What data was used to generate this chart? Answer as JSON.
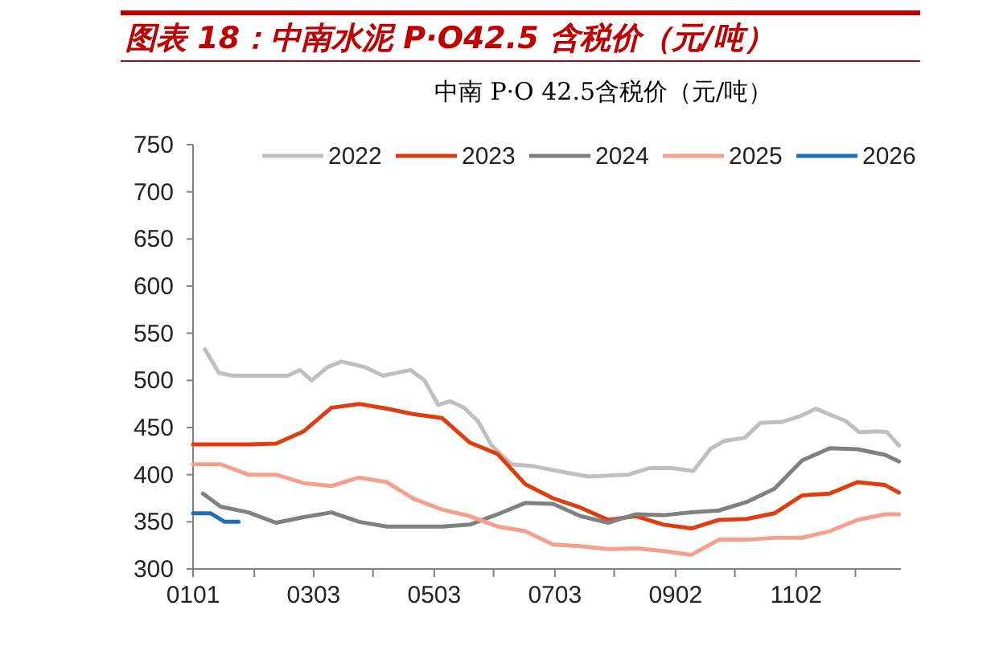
{
  "chart_data": {
    "type": "line",
    "title": "图表 18：中南水泥 P·O42.5 含税价（元/吨）",
    "subtitle": "中南 P·O 42.5含税价（元/吨）",
    "x": [
      "--01-01",
      "--01-15",
      "--01-29",
      "--02-12",
      "--02-26",
      "--03-12",
      "--03-26",
      "--04-09",
      "--04-23",
      "--05-07",
      "--05-21",
      "--06-04",
      "--06-18",
      "--07-02",
      "--07-16",
      "--07-30",
      "--08-13",
      "--08-27",
      "--09-10",
      "--09-24",
      "--10-08",
      "--10-22",
      "--11-05",
      "--11-19",
      "--12-03",
      "--12-17",
      "--12-24"
    ],
    "series": [
      {
        "name": "2022",
        "color": "#bfbfbf",
        "x": [
          "--01-07",
          "--01-14",
          "--01-21",
          "--02-18",
          "--02-24",
          "--03-02",
          "--03-10",
          "--03-17",
          "--03-29",
          "--04-07",
          "--04-21",
          "--04-28",
          "--05-05",
          "--05-11",
          "--05-18",
          "--05-25",
          "--06-01",
          "--06-11",
          "--06-22",
          "--07-09",
          "--07-20",
          "--08-09",
          "--08-20",
          "--08-31",
          "--09-11",
          "--09-20",
          "--09-27",
          "--10-07",
          "--10-15",
          "--10-26",
          "--11-04",
          "--11-12",
          "--11-21",
          "--11-27",
          "--12-04",
          "--12-13",
          "--12-18",
          "--12-24"
        ],
        "values": [
          533,
          508,
          505,
          505,
          511,
          500,
          514,
          520,
          514,
          505,
          511,
          500,
          474,
          478,
          471,
          457,
          431,
          411,
          409,
          402,
          398,
          400,
          407,
          407,
          404,
          428,
          436,
          439,
          455,
          456,
          462,
          470,
          462,
          457,
          445,
          446,
          445,
          431
        ]
      },
      {
        "name": "2023",
        "color": "#e03c0f",
        "values": [
          432,
          432,
          432,
          433,
          446,
          471,
          475,
          470,
          464,
          460,
          434,
          422,
          390,
          375,
          365,
          352,
          356,
          347,
          343,
          352,
          353,
          359,
          378,
          380,
          392,
          389,
          381
        ]
      },
      {
        "name": "2024",
        "color": "#808080",
        "x": [
          "--01-06",
          "--01-15",
          "--01-29",
          "--02-12",
          "--02-26",
          "--03-12",
          "--03-26",
          "--04-09",
          "--04-23",
          "--05-07",
          "--05-21",
          "--06-04",
          "--06-18",
          "--07-02",
          "--07-16",
          "--07-30",
          "--08-13",
          "--08-27",
          "--09-10",
          "--09-24",
          "--10-08",
          "--10-22",
          "--11-05",
          "--11-19",
          "--12-03",
          "--12-17",
          "--12-24"
        ],
        "values": [
          380,
          366,
          360,
          349,
          355,
          360,
          350,
          345,
          345,
          345,
          347,
          358,
          370,
          369,
          356,
          349,
          358,
          357,
          360,
          362,
          371,
          385,
          415,
          428,
          427,
          421,
          414
        ]
      },
      {
        "name": "2025",
        "color": "#f4a08c",
        "values": [
          411,
          411,
          400,
          400,
          391,
          388,
          397,
          392,
          374,
          363,
          356,
          345,
          340,
          326,
          324,
          321,
          322,
          319,
          315,
          331,
          331,
          333,
          333,
          340,
          352,
          358,
          358
        ]
      },
      {
        "name": "2026",
        "color": "#1f6fb8",
        "x": [
          "--01-01",
          "--01-10",
          "--01-17",
          "--01-24"
        ],
        "values": [
          359,
          359,
          350,
          350
        ]
      }
    ],
    "xlim": [
      "--01-01",
      "--12-25"
    ],
    "xticks": [
      {
        "value": "--01-01",
        "label": "0101"
      },
      {
        "value": "--02-01",
        "label": null
      },
      {
        "value": "--03-03",
        "label": "0303"
      },
      {
        "value": "--04-02",
        "label": null
      },
      {
        "value": "--05-03",
        "label": "0503"
      },
      {
        "value": "--06-02",
        "label": null
      },
      {
        "value": "--07-03",
        "label": "0703"
      },
      {
        "value": "--08-02",
        "label": null
      },
      {
        "value": "--09-02",
        "label": "0902"
      },
      {
        "value": "--10-02",
        "label": null
      },
      {
        "value": "--11-02",
        "label": "1102"
      },
      {
        "value": "--12-02",
        "label": null
      }
    ],
    "ylim": [
      300,
      750
    ],
    "yticks": [
      300,
      350,
      400,
      450,
      500,
      550,
      600,
      650,
      700,
      750
    ],
    "legend": "top"
  }
}
